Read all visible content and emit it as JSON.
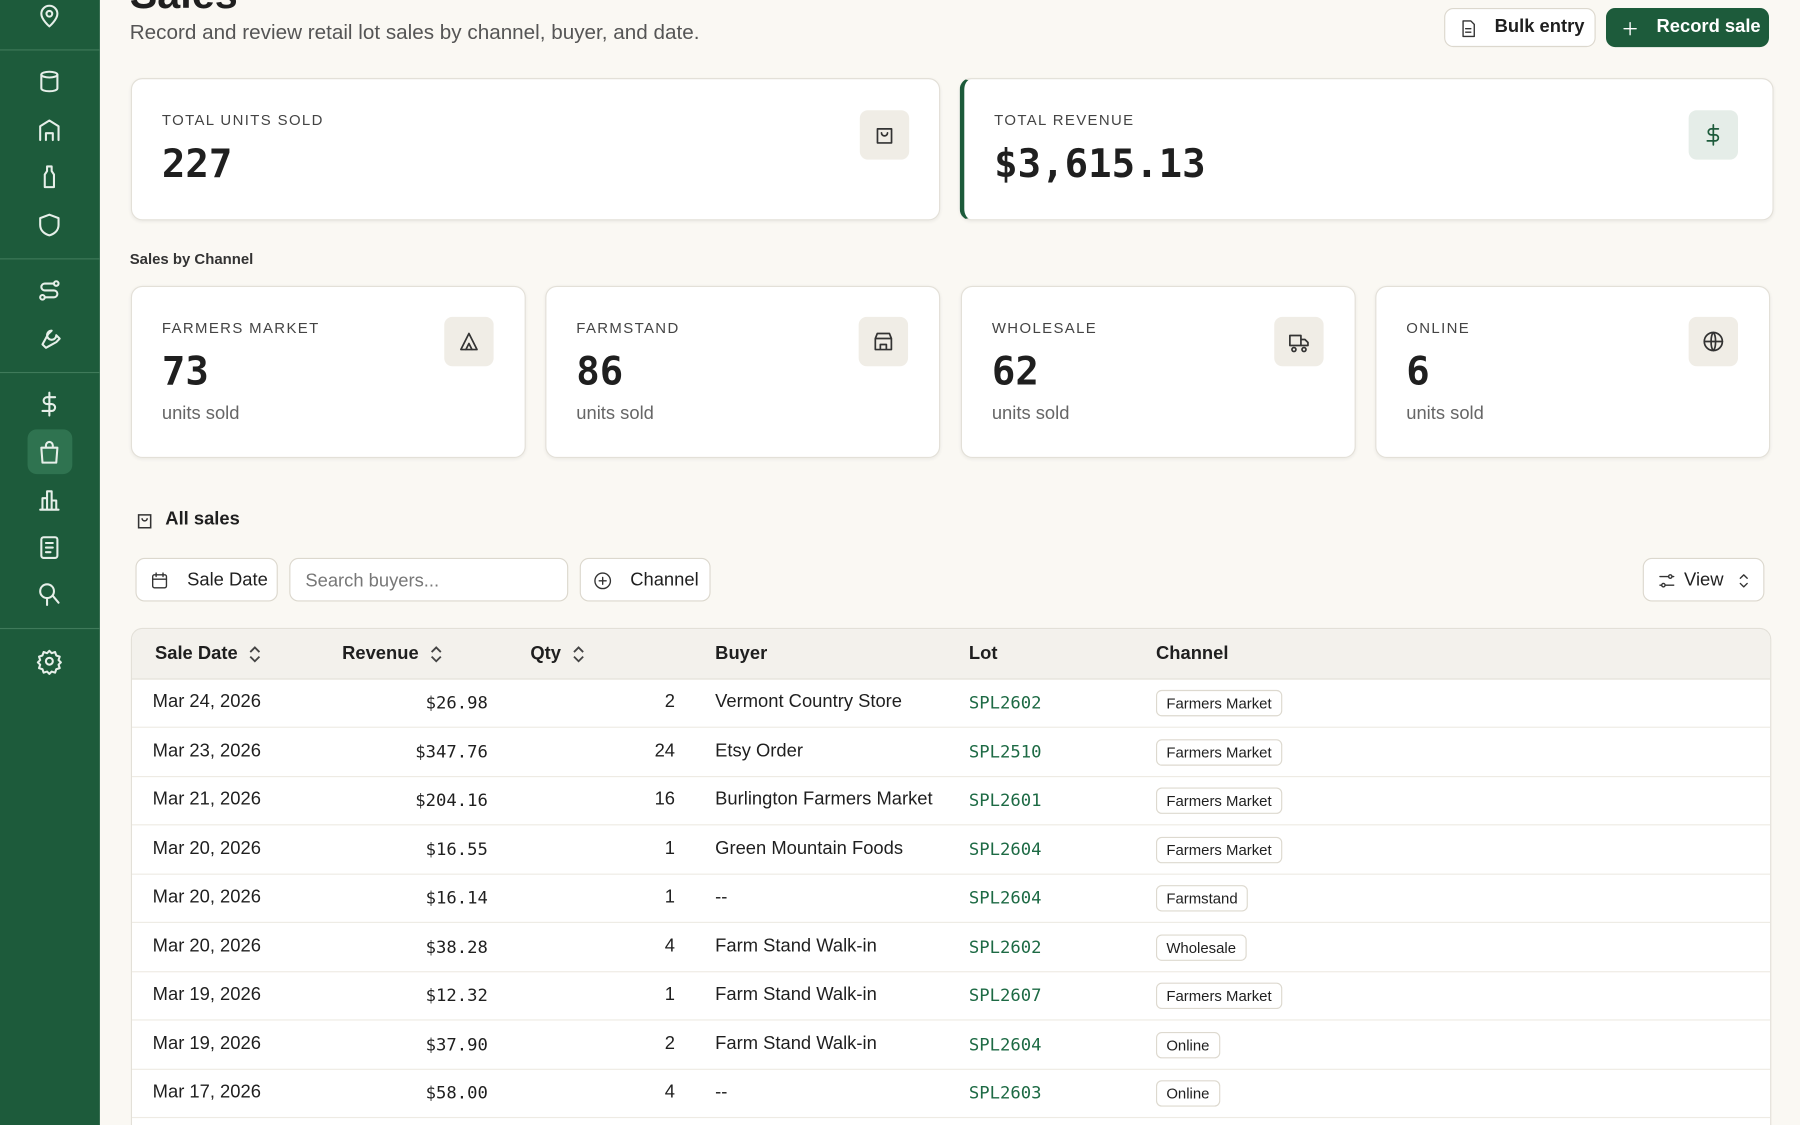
{
  "header": {
    "title": "Sales",
    "subtitle": "Record and review retail lot sales by channel, buyer, and date.",
    "actions": [
      "Bulk entry",
      "Record sale"
    ]
  },
  "stats": [
    {
      "label": "TOTAL UNITS SOLD",
      "value": "227"
    },
    {
      "label": "TOTAL REVENUE",
      "value": "$3,615.13"
    }
  ],
  "channels": {
    "title": "Sales by Channel",
    "cards": [
      {
        "label": "FARMERS MARKET",
        "value": "73",
        "unit": "units sold"
      },
      {
        "label": "FARMSTAND",
        "value": "86",
        "unit": "units sold"
      },
      {
        "label": "WHOLESALE",
        "value": "62",
        "unit": "units sold"
      },
      {
        "label": "ONLINE",
        "value": "6",
        "unit": "units sold"
      }
    ]
  },
  "table": {
    "title": "All sales",
    "filters": {
      "date": "Sale Date",
      "search": "Search buyers...",
      "channel": "Channel",
      "view": "View"
    },
    "columns": [
      "Sale Date",
      "Revenue",
      "Qty",
      "Buyer",
      "Lot",
      "Channel"
    ],
    "rows": [
      [
        "Mar 24, 2026",
        "$26.98",
        "2",
        "Vermont Country Store",
        "SPL2602",
        "Farmers Market"
      ],
      [
        "Mar 23, 2026",
        "$347.76",
        "24",
        "Etsy Order",
        "SPL2510",
        "Farmers Market"
      ],
      [
        "Mar 21, 2026",
        "$204.16",
        "16",
        "Burlington Farmers Market",
        "SPL2601",
        "Farmers Market"
      ],
      [
        "Mar 20, 2026",
        "$16.55",
        "1",
        "Green Mountain Foods",
        "SPL2604",
        "Farmers Market"
      ],
      [
        "Mar 20, 2026",
        "$16.14",
        "1",
        "--",
        "SPL2604",
        "Farmstand"
      ],
      [
        "Mar 20, 2026",
        "$38.28",
        "4",
        "Farm Stand Walk-in",
        "SPL2602",
        "Wholesale"
      ],
      [
        "Mar 19, 2026",
        "$12.32",
        "1",
        "Farm Stand Walk-in",
        "SPL2607",
        "Farmers Market"
      ],
      [
        "Mar 19, 2026",
        "$37.90",
        "2",
        "Farm Stand Walk-in",
        "SPL2604",
        "Online"
      ],
      [
        "Mar 17, 2026",
        "$58.00",
        "4",
        "--",
        "SPL2603",
        "Online"
      ]
    ]
  }
}
